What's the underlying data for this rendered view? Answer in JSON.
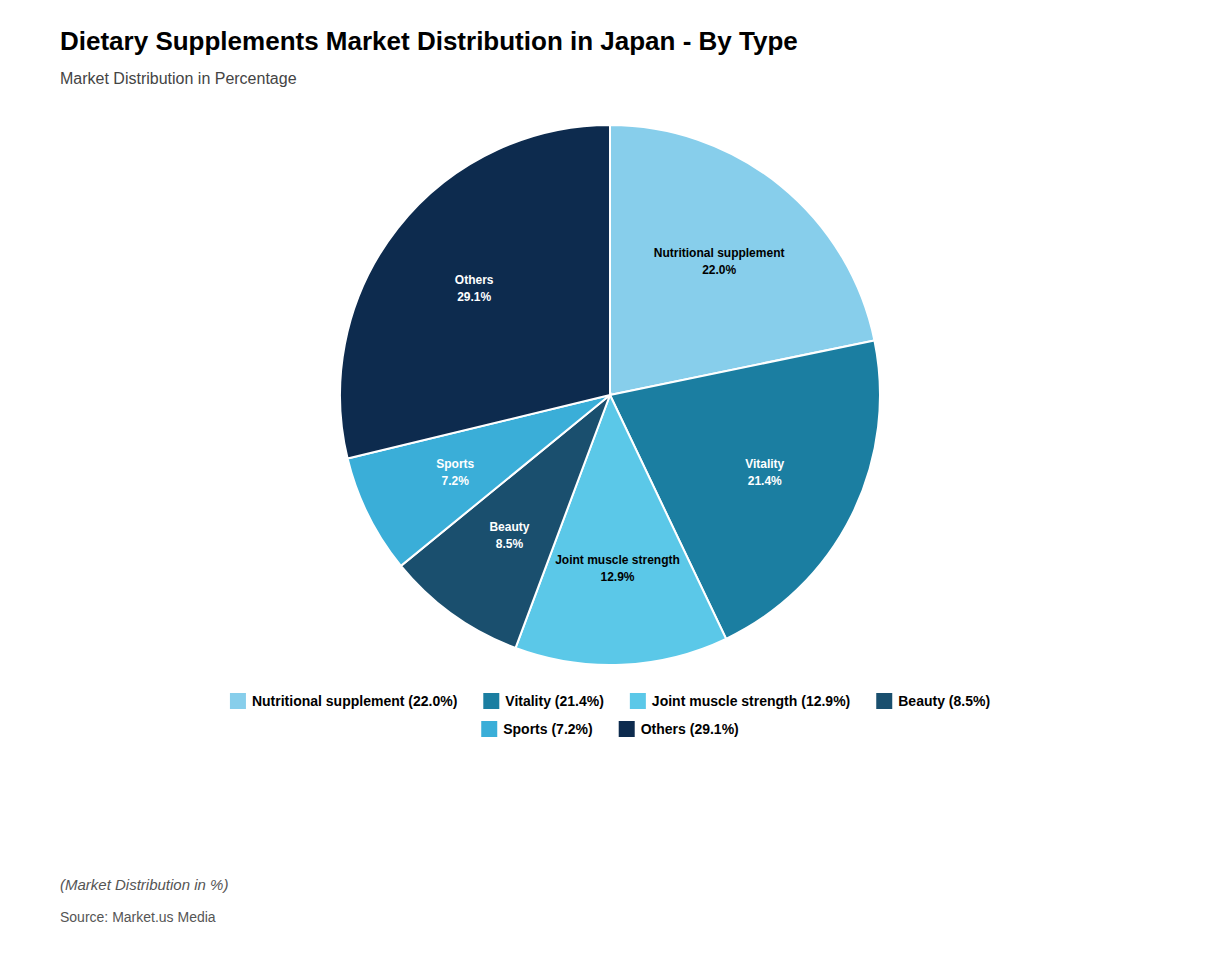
{
  "chart_data": {
    "type": "pie",
    "title": "Dietary Supplements Market Distribution in Japan - By Type",
    "subtitle": "Market Distribution in Percentage",
    "categories": [
      "Nutritional supplement",
      "Vitality",
      "Joint muscle strength",
      "Beauty",
      "Sports",
      "Others"
    ],
    "values": [
      22.0,
      21.4,
      12.9,
      8.5,
      7.2,
      29.1
    ],
    "value_labels": [
      "22.0%",
      "21.4%",
      "12.9%",
      "8.5%",
      "7.2%",
      "29.1%"
    ],
    "colors": [
      "#87CEEB",
      "#1B7EA1",
      "#5BC8E8",
      "#1A4F6E",
      "#3aaed8",
      "#0D2B4E"
    ],
    "data_labels": true,
    "legend": "bottom",
    "legend_labels": [
      "Nutritional supplement (22.0%)",
      "Vitality (21.4%)",
      "Joint muscle strength (12.9%)",
      "Beauty (8.5%)",
      "Sports (7.2%)",
      "Others (29.1%)"
    ],
    "footnote": "(Market Distribution in %)",
    "source": "Source: Market.us Media"
  }
}
